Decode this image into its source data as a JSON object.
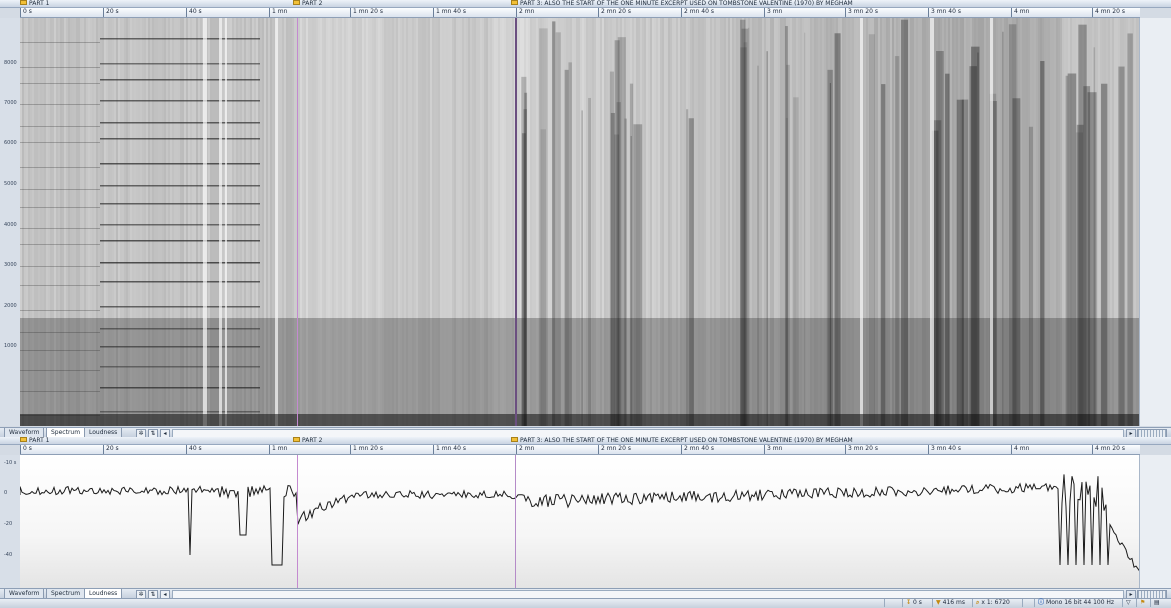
{
  "markers": [
    {
      "id": "part1",
      "label": "PART 1"
    },
    {
      "id": "part2",
      "label": "PART 2"
    },
    {
      "id": "part3",
      "label": "PART 3: ALSO THE START OF THE ONE MINUTE EXCERPT USED ON TOMBSTONE VALENTINE (1970) BY MEGHAM"
    }
  ],
  "ruler": [
    "0 s",
    "20 s",
    "40 s",
    "1 mn",
    "1 mn 20 s",
    "1 mn 40 s",
    "2 mn",
    "2 mn 20 s",
    "2 mn 40 s",
    "3 mn",
    "3 mn 20 s",
    "3 mn 40 s",
    "4 mn",
    "4 mn 20 s"
  ],
  "spectrum_scale": [
    "8000",
    "7000",
    "6000",
    "5000",
    "4000",
    "3000",
    "2000",
    "1000"
  ],
  "loudness_scale": [
    "-10 s",
    "0",
    "-20",
    "-40"
  ],
  "tabs_top": [
    "Waveform",
    "Spectrum",
    "Loudness"
  ],
  "tabs_bottom": [
    "Waveform",
    "Spectrum",
    "Loudness"
  ],
  "status": {
    "cursor": "0 s",
    "selection": "416 ms",
    "zoom": "x 1: 6720",
    "format": "Mono 16 bit 44 100 Hz"
  },
  "colors": {
    "marker_line": "#c48ad0",
    "part3_line": "#6b4f80",
    "marker_flag": "#f2c037"
  },
  "icons": [
    "marker-flag-icon",
    "gear-icon",
    "arrows-icon",
    "play-arrow-icon",
    "ruler-icon",
    "selection-icon",
    "zoom-icon",
    "info-icon",
    "filter-icon"
  ]
}
